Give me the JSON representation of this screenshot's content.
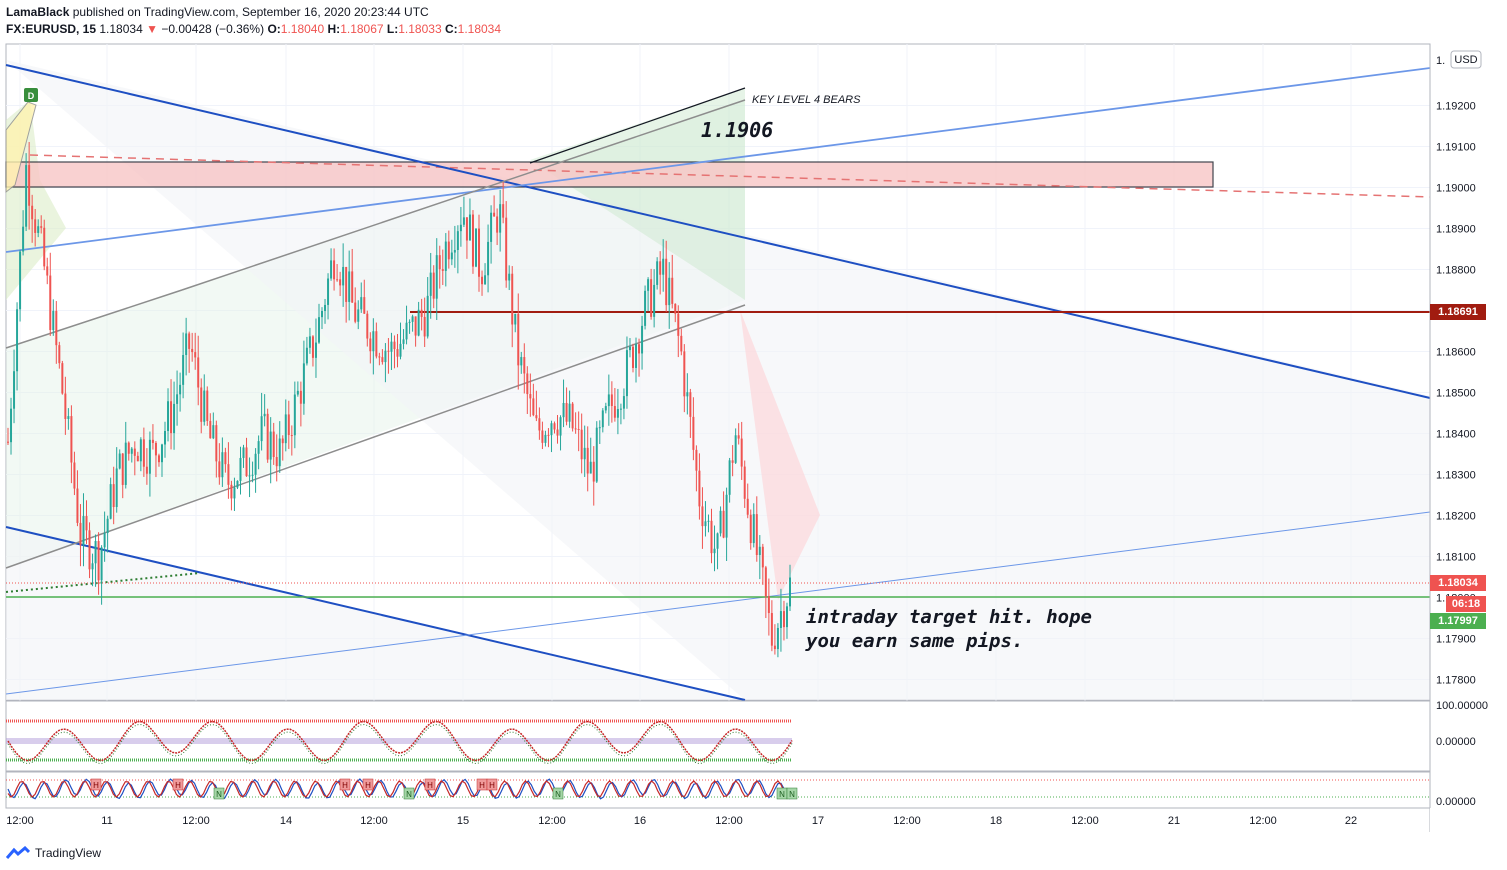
{
  "header": {
    "author": "LamaBlack",
    "published_text": "published on TradingView.com, September 16, 2020 20:23:44 UTC",
    "symbol": "FX:EURUSD, 15",
    "last": "1.18034",
    "change": "−0.00428 (−0.36%)",
    "o_label": "O:",
    "o_value": "1.18040",
    "h_label": "H:",
    "h_value": "1.18067",
    "l_label": "L:",
    "l_value": "1.18033",
    "c_label": "C:",
    "c_value": "1.18034"
  },
  "price_axis": {
    "currency": "USD",
    "top_label": "1.",
    "ticks": [
      "1.19200",
      "1.19100",
      "1.19000",
      "1.18900",
      "1.18800",
      "1.18700",
      "1.18600",
      "1.18500",
      "1.18400",
      "1.18300",
      "1.18200",
      "1.18100",
      "1.18000",
      "1.17900",
      "1.17800"
    ]
  },
  "price_tags": {
    "level": "1.18691",
    "last": "1.18034",
    "countdown": "06:18",
    "support": "1.17997"
  },
  "annotations": {
    "key_level": "KEY LEVEL 4 BEARS",
    "key_price": "1.1906",
    "target_line1": "intraday target hit. hope",
    "target_line2": "you earn same pips.",
    "badge": "D"
  },
  "oscillators": {
    "osc1_top": "100.00000",
    "osc1_mid": "0.00000",
    "osc2_bottom": "0.00000",
    "osc2_top": "",
    "markers_red": [
      "H",
      "H",
      "H",
      "H",
      "H",
      "H",
      "H"
    ],
    "markers_green": [
      "N",
      "N",
      "N",
      "N",
      "N"
    ]
  },
  "time_axis": [
    "12:00",
    "11",
    "12:00",
    "14",
    "12:00",
    "15",
    "12:00",
    "16",
    "12:00",
    "17",
    "12:00",
    "18",
    "12:00",
    "21",
    "12:00",
    "22"
  ],
  "footer": {
    "brand": "TradingView"
  },
  "colors": {
    "bull": "#26a69a",
    "bear": "#ef5350",
    "trend_blue": "#1e4fc2",
    "level_red": "#a11c10",
    "support_green": "#4caf50"
  },
  "chart_data": {
    "type": "candlestick",
    "symbol": "EURUSD",
    "interval": "15",
    "ylim": [
      1.1775,
      1.1935
    ],
    "x": [
      "12:00",
      "11",
      "12:00",
      "14",
      "12:00",
      "15",
      "12:00",
      "16",
      "12:00",
      "17",
      "12:00",
      "18",
      "12:00",
      "21",
      "12:00",
      "22"
    ],
    "close_path": [
      1.1838,
      1.1905,
      1.188,
      1.185,
      1.1815,
      1.181,
      1.183,
      1.1838,
      1.1835,
      1.1845,
      1.1862,
      1.184,
      1.1828,
      1.1832,
      1.184,
      1.1835,
      1.185,
      1.1865,
      1.1885,
      1.187,
      1.1865,
      1.186,
      1.1864,
      1.187,
      1.1885,
      1.1895,
      1.188,
      1.1895,
      1.186,
      1.184,
      1.1845,
      1.1842,
      1.183,
      1.1845,
      1.1855,
      1.187,
      1.188,
      1.186,
      1.1825,
      1.181,
      1.184,
      1.1815,
      1.179,
      1.1803
    ],
    "levels": {
      "resistance_zone": [
        1.1899,
        1.1905
      ],
      "key_level": 1.1906,
      "level_line": 1.18691,
      "last_price": 1.18034,
      "support": 1.17997
    }
  }
}
